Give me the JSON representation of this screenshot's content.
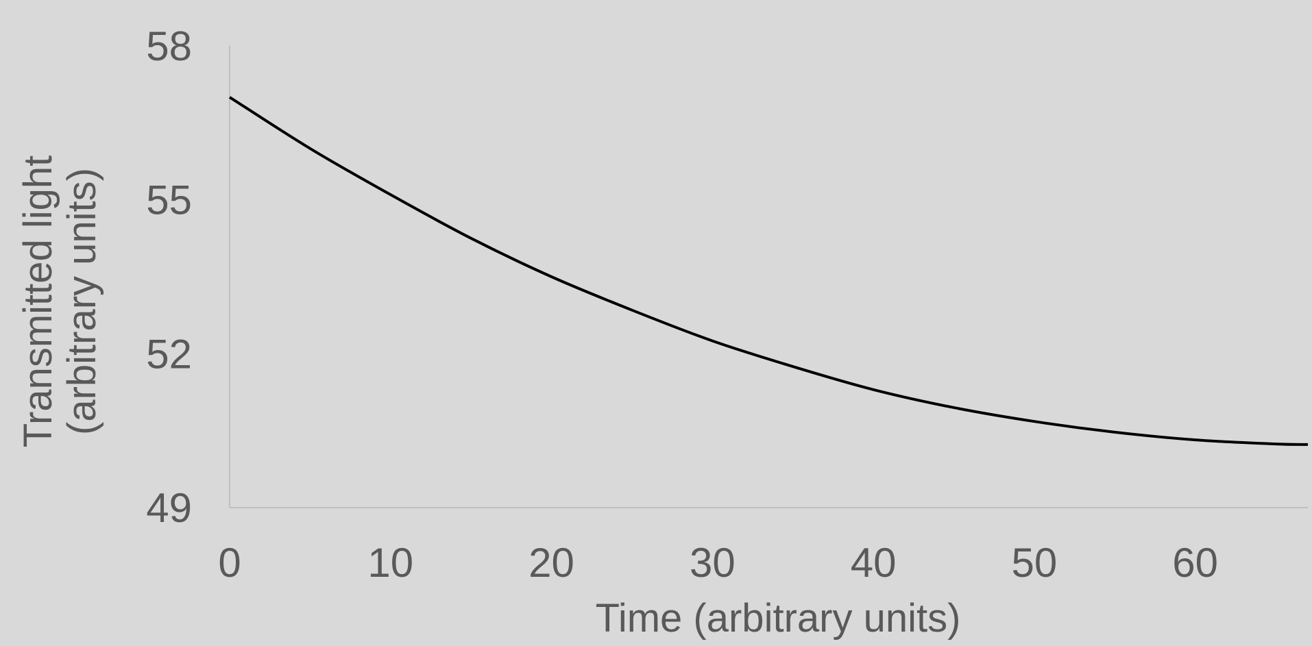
{
  "chart_data": {
    "type": "line",
    "title": "",
    "xlabel": "Time (arbitrary units)",
    "ylabel_lines": [
      "Transmitted light",
      "(arbitrary units)"
    ],
    "xlim": [
      0,
      67
    ],
    "ylim": [
      49,
      58
    ],
    "x_ticks": [
      "0",
      "10",
      "20",
      "30",
      "40",
      "50",
      "60"
    ],
    "y_ticks": [
      "49",
      "52",
      "55",
      "58"
    ],
    "grid": false,
    "legend": "none",
    "series": [
      {
        "color": "#000000",
        "x": [
          0,
          5,
          10,
          15,
          20,
          25,
          30,
          35,
          40,
          45,
          50,
          55,
          60,
          65,
          67
        ],
        "y": [
          57.0,
          56.0,
          55.1,
          54.25,
          53.5,
          52.85,
          52.25,
          51.75,
          51.3,
          50.95,
          50.68,
          50.47,
          50.32,
          50.24,
          50.23
        ]
      }
    ],
    "colors": {
      "background": "#d9d9d9",
      "axis": "#bfbfbf",
      "text": "#595959"
    }
  }
}
